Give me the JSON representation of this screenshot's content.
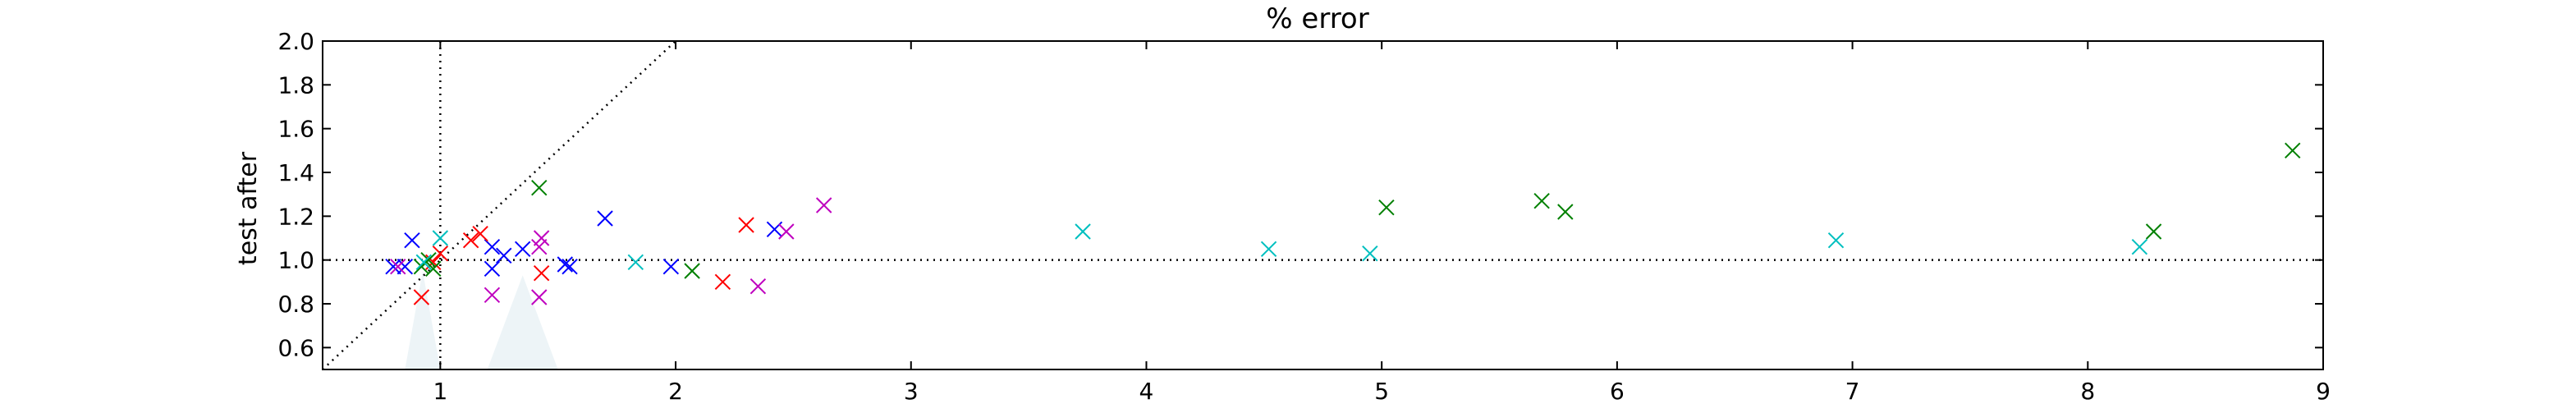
{
  "chart_data": {
    "type": "scatter",
    "title": "% error",
    "xlabel": "",
    "ylabel": "test after",
    "xlim": [
      0.5,
      9
    ],
    "ylim": [
      0.5,
      2.0
    ],
    "x_ticks": [
      1,
      2,
      3,
      4,
      5,
      6,
      7,
      8,
      9
    ],
    "y_ticks": [
      "0.6",
      "0.8",
      "1.0",
      "1.2",
      "1.4",
      "1.6",
      "1.8",
      "2.0"
    ],
    "marker": "x",
    "grid": false,
    "reference_lines": {
      "vertical_x": 1.0,
      "horizontal_y": 1.0,
      "diagonal": "y = x"
    },
    "shaded_regions": [
      {
        "x": [
          0.85,
          1.0
        ],
        "y_top": 0.95
      },
      {
        "x": [
          1.2,
          1.5
        ],
        "y_top": 0.93
      }
    ],
    "series": [
      {
        "color": "#0000ff",
        "points": [
          [
            0.8,
            0.97
          ],
          [
            0.85,
            0.97
          ],
          [
            0.88,
            1.09
          ],
          [
            1.22,
            1.06
          ],
          [
            1.22,
            0.96
          ],
          [
            1.27,
            1.02
          ],
          [
            1.35,
            1.05
          ],
          [
            1.53,
            0.98
          ],
          [
            1.55,
            0.97
          ],
          [
            1.7,
            1.19
          ],
          [
            1.98,
            0.97
          ],
          [
            2.42,
            1.14
          ]
        ]
      },
      {
        "color": "#ff0000",
        "points": [
          [
            0.92,
            0.83
          ],
          [
            0.97,
            0.99
          ],
          [
            1.0,
            1.03
          ],
          [
            1.13,
            1.09
          ],
          [
            1.17,
            1.12
          ],
          [
            1.43,
            0.94
          ],
          [
            2.2,
            0.9
          ],
          [
            2.3,
            1.16
          ]
        ]
      },
      {
        "color": "#bf00bf",
        "points": [
          [
            0.82,
            0.97
          ],
          [
            1.22,
            0.84
          ],
          [
            1.42,
            0.83
          ],
          [
            1.42,
            1.06
          ],
          [
            1.43,
            1.1
          ],
          [
            2.35,
            0.88
          ],
          [
            2.47,
            1.13
          ],
          [
            2.63,
            1.25
          ]
        ]
      },
      {
        "color": "#008000",
        "points": [
          [
            0.92,
            0.97
          ],
          [
            0.95,
            1.0
          ],
          [
            0.97,
            0.96
          ],
          [
            1.42,
            1.33
          ],
          [
            2.07,
            0.95
          ],
          [
            5.02,
            1.24
          ],
          [
            5.68,
            1.27
          ],
          [
            5.78,
            1.22
          ],
          [
            8.28,
            1.13
          ],
          [
            8.87,
            1.5
          ]
        ]
      },
      {
        "color": "#00bfbf",
        "points": [
          [
            0.93,
            0.99
          ],
          [
            1.0,
            1.1
          ],
          [
            1.83,
            0.99
          ],
          [
            3.73,
            1.13
          ],
          [
            4.52,
            1.05
          ],
          [
            4.95,
            1.03
          ],
          [
            6.93,
            1.09
          ],
          [
            8.22,
            1.06
          ]
        ]
      }
    ]
  }
}
